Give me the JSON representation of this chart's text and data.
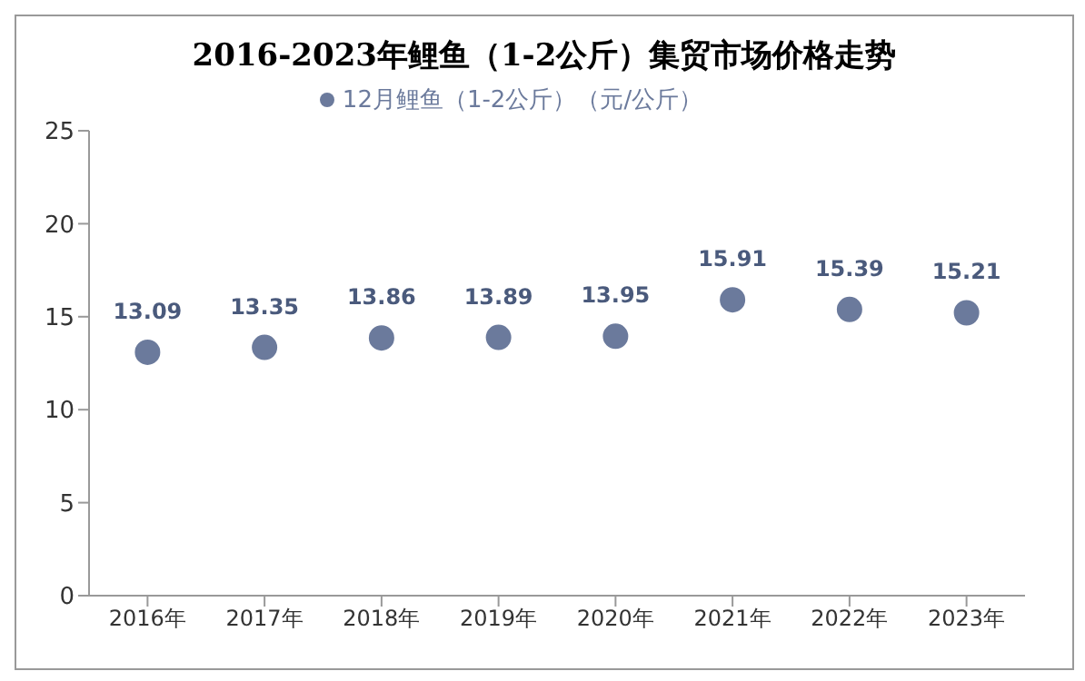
{
  "chart_data": {
    "type": "scatter",
    "title": "2016-2023年鲤鱼（1-2公斤）集贸市场价格走势",
    "categories": [
      "2016年",
      "2017年",
      "2018年",
      "2019年",
      "2020年",
      "2021年",
      "2022年",
      "2023年"
    ],
    "series": [
      {
        "name": "12月鲤鱼（1-2公斤）（元/公斤）",
        "color": "#6b7a9c",
        "values": [
          13.09,
          13.35,
          13.86,
          13.89,
          13.95,
          15.91,
          15.39,
          15.21
        ]
      }
    ],
    "ylim": [
      0,
      25
    ],
    "yticks": [
      0,
      5,
      10,
      15,
      20,
      25
    ],
    "grid": false,
    "legend": "top",
    "marker": "circle",
    "data_labels": true
  }
}
